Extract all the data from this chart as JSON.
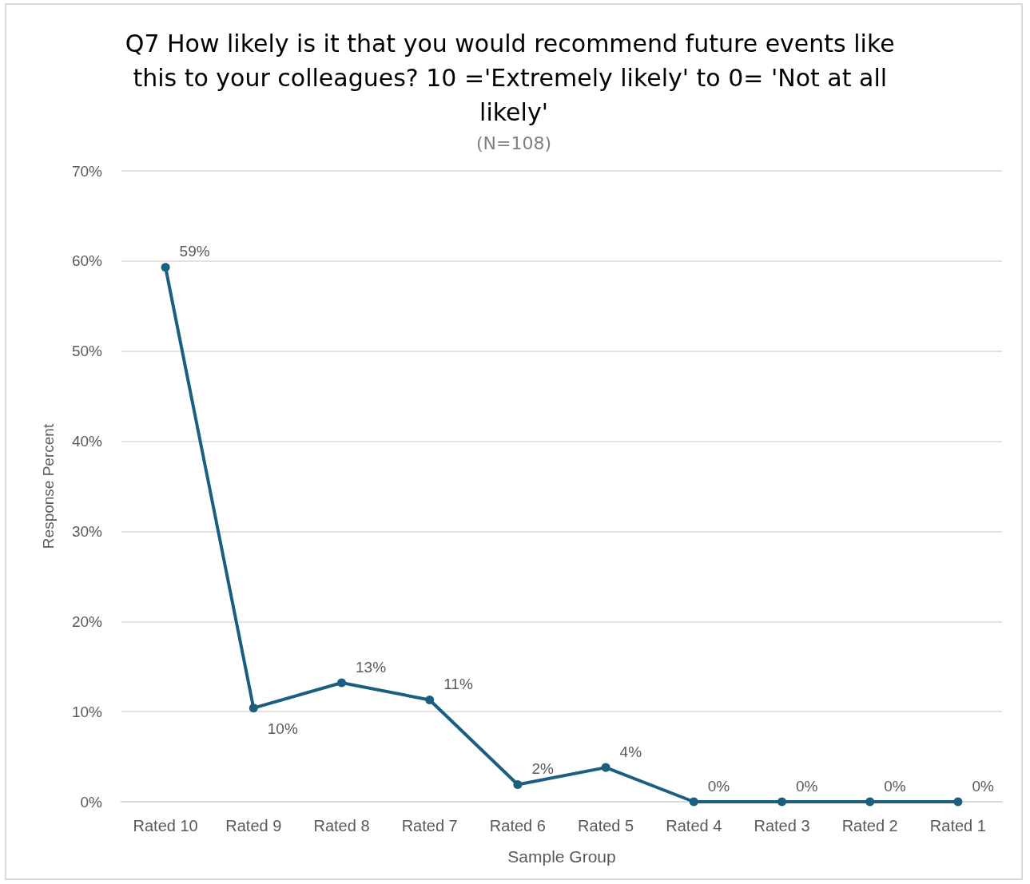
{
  "chart_data": {
    "type": "line",
    "title": "Q7 How likely is it that you would recommend future events like this to your colleagues? 10 ='Extremely likely' to 0= 'Not at all likely'",
    "subtitle": "(N=108)",
    "xlabel": "Sample Group",
    "ylabel": "Response Percent",
    "categories": [
      "Rated 10",
      "Rated 9",
      "Rated 8",
      "Rated 7",
      "Rated 6",
      "Rated 5",
      "Rated 4",
      "Rated 3",
      "Rated 2",
      "Rated 1"
    ],
    "series": [
      {
        "color": "#1b5e7f",
        "values": [
          59.3,
          10.4,
          13.2,
          11.3,
          1.9,
          3.8,
          0,
          0,
          0,
          0
        ],
        "value_labels": [
          "59%",
          "10%",
          "13%",
          "11%",
          "2%",
          "4%",
          "0%",
          "0%",
          "0%",
          "0%"
        ]
      }
    ],
    "ylim": [
      0,
      70
    ],
    "yticks": [
      {
        "value": 0,
        "label": "0%"
      },
      {
        "value": 10,
        "label": "10%"
      },
      {
        "value": 20,
        "label": "20%"
      },
      {
        "value": 30,
        "label": "30%"
      },
      {
        "value": 40,
        "label": "40%"
      },
      {
        "value": 50,
        "label": "50%"
      },
      {
        "value": 60,
        "label": "60%"
      },
      {
        "value": 70,
        "label": "70%"
      }
    ],
    "grid": "y",
    "marker": "circle",
    "line_style": "solid"
  }
}
